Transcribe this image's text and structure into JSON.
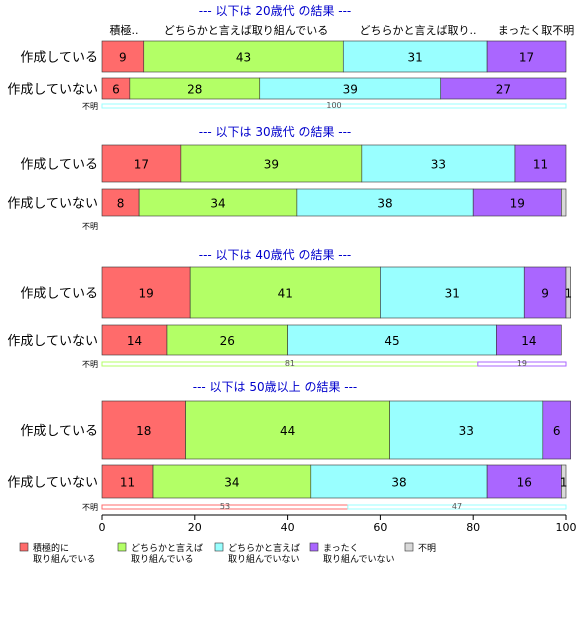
{
  "chart_data": {
    "type": "bar",
    "orientation": "horizontal",
    "stacked": true,
    "percent": true,
    "xlim": [
      0,
      100
    ],
    "x_ticks": [
      "0",
      "20",
      "40",
      "60",
      "80",
      "100"
    ],
    "colors": {
      "active": "#FF6B6B",
      "somewhat_active": "#B3FF66",
      "somewhat_inactive": "#99FFFF",
      "not_at_all": "#AA66FF",
      "unknown": "#D9D9D9",
      "title": "#0000CC"
    },
    "legend": {
      "position": "bottom",
      "items": [
        {
          "key": "active",
          "lines": [
            "積極的に",
            "取り組んでいる"
          ]
        },
        {
          "key": "somewhat_active",
          "lines": [
            "どちらかと言えば",
            "取り組んでいる"
          ]
        },
        {
          "key": "somewhat_inactive",
          "lines": [
            "どちらかと言えば",
            "取り組んでいない"
          ]
        },
        {
          "key": "not_at_all",
          "lines": [
            "まったく",
            "取り組んでいない"
          ]
        },
        {
          "key": "unknown",
          "lines": [
            "不明"
          ]
        }
      ]
    },
    "header_labels": [
      "積極..",
      "どちらかと言えば取り組んでいる",
      "どちらかと言えば取り..",
      "まったく取不明"
    ],
    "panels": [
      {
        "title": "--- 以下は 20歳代 の結果 ---",
        "rows": [
          {
            "label": "作成している",
            "values": [
              9,
              43,
              31,
              17,
              0
            ],
            "labels": [
              "9",
              "43",
              "31",
              "17",
              ""
            ]
          },
          {
            "label": "作成していない",
            "values": [
              6,
              28,
              39,
              27,
              0
            ],
            "labels": [
              "6",
              "28",
              "39",
              "27",
              ""
            ]
          },
          {
            "label": "不明",
            "values": [
              0,
              0,
              100,
              0,
              0
            ],
            "labels": [
              "",
              "",
              "100",
              "",
              ""
            ]
          }
        ]
      },
      {
        "title": "--- 以下は 30歳代 の結果 ---",
        "rows": [
          {
            "label": "作成している",
            "values": [
              17,
              39,
              33,
              11,
              0
            ],
            "labels": [
              "17",
              "39",
              "33",
              "11",
              ""
            ]
          },
          {
            "label": "作成していない",
            "values": [
              8,
              34,
              38,
              19,
              1
            ],
            "labels": [
              "8",
              "34",
              "38",
              "19",
              ""
            ]
          },
          {
            "label": "不明",
            "values": [
              0,
              0,
              0,
              0,
              0
            ],
            "labels": [
              "",
              "",
              "",
              "",
              ""
            ]
          }
        ]
      },
      {
        "title": "--- 以下は 40歳代 の結果 ---",
        "rows": [
          {
            "label": "作成している",
            "values": [
              19,
              41,
              31,
              9,
              1
            ],
            "labels": [
              "19",
              "41",
              "31",
              "9",
              "1"
            ]
          },
          {
            "label": "作成していない",
            "values": [
              14,
              26,
              45,
              14,
              0
            ],
            "labels": [
              "14",
              "26",
              "45",
              "14",
              ""
            ]
          },
          {
            "label": "不明",
            "values": [
              0,
              81,
              0,
              19,
              0
            ],
            "labels": [
              "",
              "81",
              "",
              "19",
              ""
            ]
          }
        ]
      },
      {
        "title": "--- 以下は 50歳以上 の結果 ---",
        "rows": [
          {
            "label": "作成している",
            "values": [
              18,
              44,
              33,
              6,
              0
            ],
            "labels": [
              "18",
              "44",
              "33",
              "6",
              ""
            ]
          },
          {
            "label": "作成していない",
            "values": [
              11,
              34,
              38,
              16,
              1
            ],
            "labels": [
              "11",
              "34",
              "38",
              "16",
              "1"
            ]
          },
          {
            "label": "不明",
            "values": [
              53,
              0,
              47,
              0,
              0
            ],
            "labels": [
              "53",
              "",
              "47",
              "",
              ""
            ]
          }
        ]
      }
    ]
  }
}
